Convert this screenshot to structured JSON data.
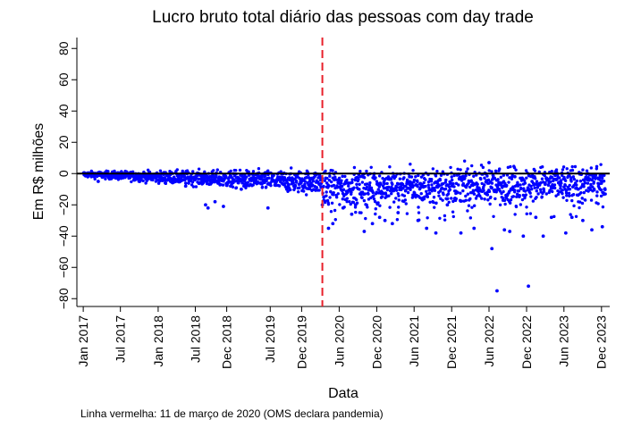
{
  "chart_data": {
    "type": "scatter",
    "title": "Lucro bruto total diário das pessoas com day trade",
    "xlabel": "Data",
    "ylabel": "Em R$ milhões",
    "caption": "Linha vermelha: 11 de março de 2020 (OMS declara pandemia)",
    "ylim": [
      -85,
      87
    ],
    "xlim": [
      "2016-12-01",
      "2024-01-10"
    ],
    "y_ticks": [
      -80,
      -60,
      -40,
      -20,
      0,
      20,
      40,
      60,
      80
    ],
    "y_tick_labels": [
      "−80",
      "−60",
      "−40",
      "−20",
      "0",
      "20",
      "40",
      "60",
      "80"
    ],
    "x_ticks": [
      {
        "date": "2017-01-01",
        "label": "Jan 2017"
      },
      {
        "date": "2017-07-01",
        "label": "Jul 2017"
      },
      {
        "date": "2018-01-01",
        "label": "Jan 2018"
      },
      {
        "date": "2018-07-01",
        "label": "Jul 2018"
      },
      {
        "date": "2018-12-01",
        "label": "Dec 2018"
      },
      {
        "date": "2019-07-01",
        "label": "Jul 2019"
      },
      {
        "date": "2019-12-01",
        "label": "Dec 2019"
      },
      {
        "date": "2020-06-01",
        "label": "Jun 2020"
      },
      {
        "date": "2020-12-01",
        "label": "Dec 2020"
      },
      {
        "date": "2021-06-01",
        "label": "Jun 2021"
      },
      {
        "date": "2021-12-01",
        "label": "Dec 2021"
      },
      {
        "date": "2022-06-01",
        "label": "Jun 2022"
      },
      {
        "date": "2022-12-01",
        "label": "Dec 2022"
      },
      {
        "date": "2023-06-01",
        "label": "Jun 2023"
      },
      {
        "date": "2023-12-01",
        "label": "Dec 2023"
      }
    ],
    "reference_lines": [
      {
        "orientation": "horizontal",
        "y": 0,
        "color": "#000000",
        "style": "solid"
      },
      {
        "orientation": "vertical",
        "x": "2020-03-11",
        "color": "#e8202a",
        "style": "dashed"
      }
    ],
    "point_color": "#0000ff",
    "series": [
      {
        "x": [
          "2017-03-15",
          "2017-05-20",
          "2017-09-10",
          "2018-02-05",
          "2018-05-15",
          "2018-08-20",
          "2018-09-01",
          "2018-10-05",
          "2018-11-15",
          "2018-12-20",
          "2019-02-10",
          "2019-06-20",
          "2019-10-05",
          "2020-01-20",
          "2020-03-11",
          "2020-03-18",
          "2020-04-10",
          "2020-05-01",
          "2020-06-20",
          "2020-08-01",
          "2020-08-20",
          "2020-10-01",
          "2020-11-10",
          "2020-12-15",
          "2021-01-10",
          "2021-02-15",
          "2021-03-15",
          "2021-05-10",
          "2021-06-20",
          "2021-08-01",
          "2021-09-15",
          "2021-11-10",
          "2022-01-15",
          "2022-03-20",
          "2022-05-20",
          "2022-06-01",
          "2022-06-15",
          "2022-07-10",
          "2022-08-15",
          "2022-09-10",
          "2022-10-05",
          "2022-11-15",
          "2022-12-10",
          "2023-01-15",
          "2023-02-20",
          "2023-04-01",
          "2023-06-10",
          "2023-07-10",
          "2023-09-01",
          "2023-10-15",
          "2023-12-05"
        ],
        "y": [
          -5,
          -2,
          -4,
          -6,
          -8,
          -20,
          -22,
          -18,
          -21,
          -8,
          -10,
          -22,
          -4,
          -3,
          -20,
          -15,
          -35,
          -32,
          -22,
          -26,
          -20,
          -37,
          -32,
          -28,
          -30,
          -32,
          -25,
          -2,
          -30,
          -35,
          -38,
          -20,
          -38,
          -35,
          -5,
          7,
          -48,
          -75,
          -36,
          -37,
          -2,
          -40,
          -72,
          -28,
          -40,
          -28,
          -38,
          -28,
          -30,
          -36,
          -34
        ]
      }
    ]
  }
}
